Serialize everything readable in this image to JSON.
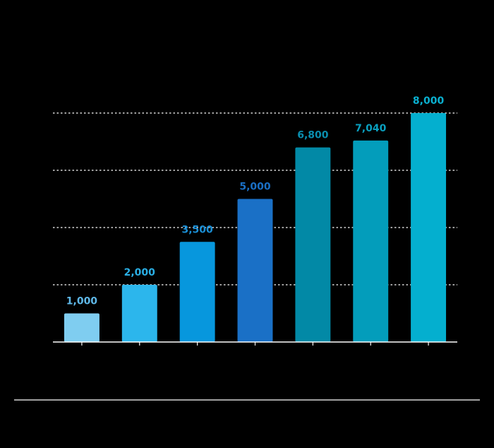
{
  "chart_data": {
    "type": "bar",
    "categories": [
      "",
      "",
      "",
      "",
      "",
      "",
      ""
    ],
    "values": [
      1000,
      2000,
      3500,
      5000,
      6800,
      7040,
      8000
    ],
    "data_labels": [
      "1,000",
      "2,000",
      "3,500",
      "5,000",
      "6,800",
      "7,040",
      "8,000"
    ],
    "bar_colors": [
      "#7fcdf0",
      "#2cb6ec",
      "#0797dd",
      "#1a70c6",
      "#0289a6",
      "#039dbb",
      "#04afcf"
    ],
    "label_colors": [
      "#5fb8e8",
      "#2ab0e6",
      "#1a8fd6",
      "#1a6fc4",
      "#0a8fb0",
      "#0aa0c0",
      "#0ab0d0"
    ],
    "ylim": [
      0,
      8000
    ],
    "gridlines": [
      2000,
      4000,
      6000,
      8000
    ],
    "grid": true,
    "grid_style": "dotted",
    "title": "",
    "xlabel": "",
    "ylabel": ""
  }
}
